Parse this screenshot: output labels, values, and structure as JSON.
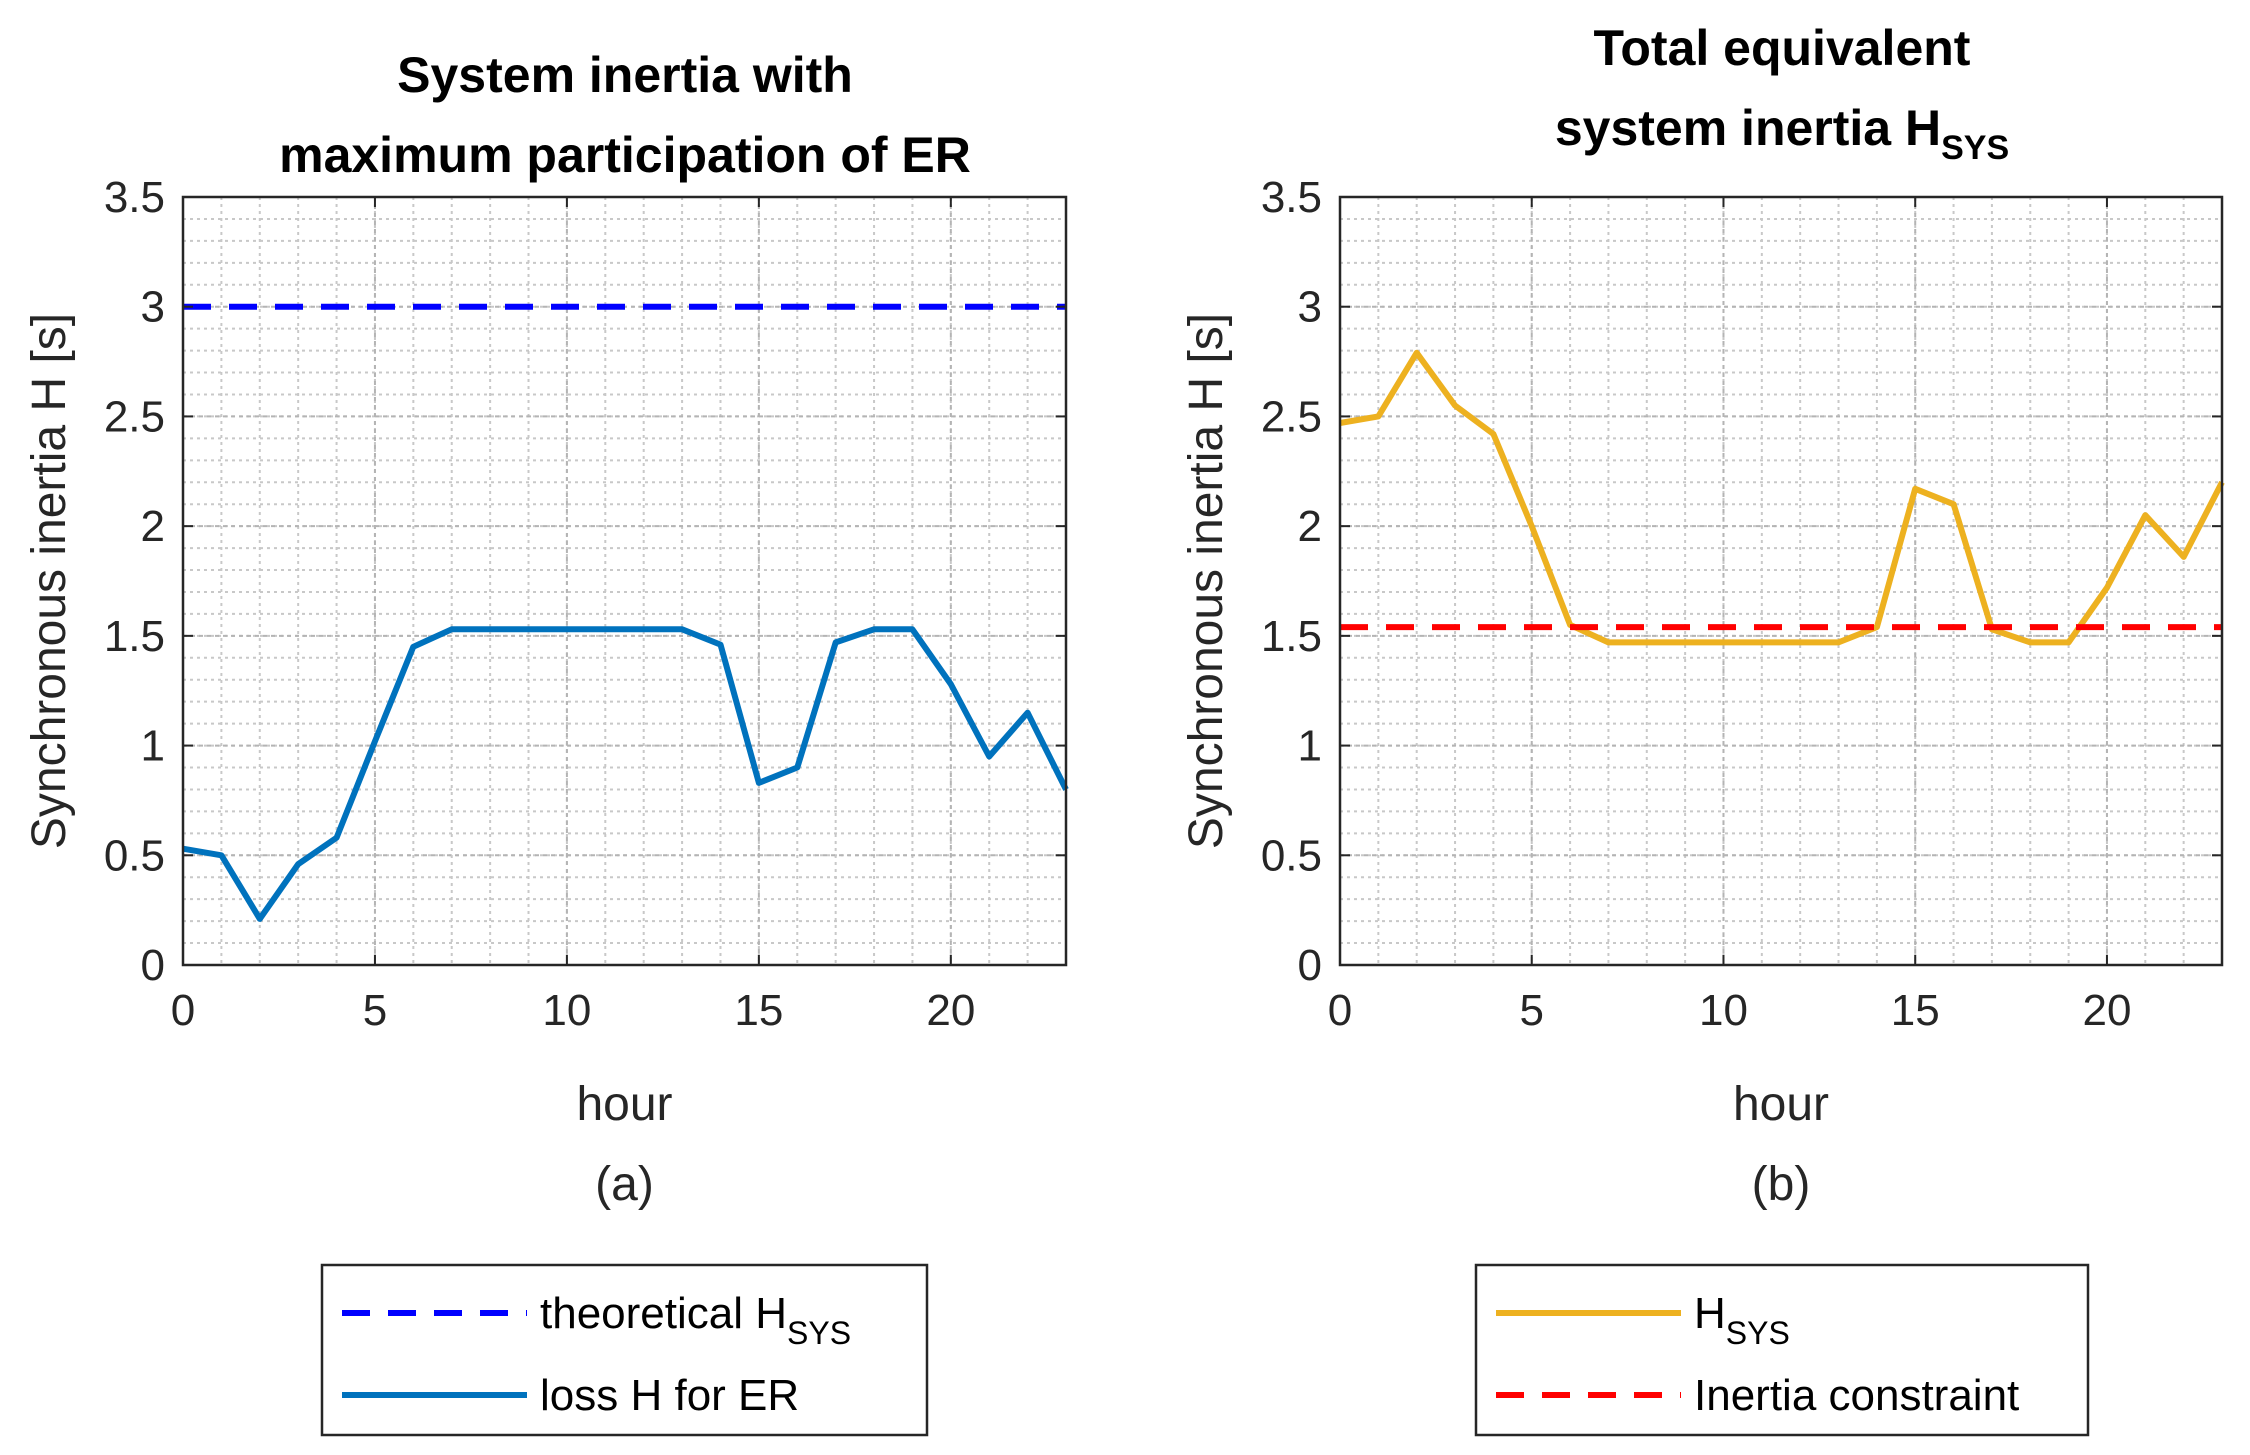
{
  "chart_data": [
    {
      "type": "line",
      "id": "a",
      "title_lines": [
        "System inertia with",
        "maximum participation of ER"
      ],
      "xlabel": "hour",
      "ylabel": "Synchronous inertia H [s]",
      "caption": "(a)",
      "xlim": [
        0,
        23
      ],
      "ylim": [
        0,
        3.5
      ],
      "xticks": [
        0,
        5,
        10,
        15,
        20
      ],
      "yticks": [
        0,
        0.5,
        1,
        1.5,
        2,
        2.5,
        3,
        3.5
      ],
      "grid": true,
      "legend_position": "below",
      "series": [
        {
          "name": "theoretical H",
          "name_sub": "SYS",
          "color": "#0000ff",
          "style": "dashed",
          "x": [
            0,
            23
          ],
          "values": [
            3.0,
            3.0
          ]
        },
        {
          "name": "loss H for ER",
          "name_sub": "",
          "color": "#0072bd",
          "style": "solid",
          "x": [
            0,
            1,
            2,
            3,
            4,
            5,
            6,
            7,
            8,
            9,
            10,
            11,
            12,
            13,
            14,
            15,
            16,
            17,
            18,
            19,
            20,
            21,
            22,
            23
          ],
          "values": [
            0.53,
            0.5,
            0.21,
            0.46,
            0.58,
            1.02,
            1.45,
            1.53,
            1.53,
            1.53,
            1.53,
            1.53,
            1.53,
            1.53,
            1.46,
            0.83,
            0.9,
            1.47,
            1.53,
            1.53,
            1.28,
            0.95,
            1.15,
            0.8
          ]
        }
      ]
    },
    {
      "type": "line",
      "id": "b",
      "title_lines": [
        "Total equivalent",
        "system inertia H"
      ],
      "title_sub": "SYS",
      "xlabel": "hour",
      "ylabel": "Synchronous inertia H [s]",
      "caption": "(b)",
      "xlim": [
        0,
        23
      ],
      "ylim": [
        0,
        3.5
      ],
      "xticks": [
        0,
        5,
        10,
        15,
        20
      ],
      "yticks": [
        0,
        0.5,
        1,
        1.5,
        2,
        2.5,
        3,
        3.5
      ],
      "grid": true,
      "legend_position": "below",
      "series": [
        {
          "name": "H",
          "name_sub": "SYS",
          "color": "#edb120",
          "style": "solid",
          "x": [
            0,
            1,
            2,
            3,
            4,
            5,
            6,
            7,
            8,
            9,
            10,
            11,
            12,
            13,
            14,
            15,
            16,
            17,
            18,
            19,
            20,
            21,
            22,
            23
          ],
          "values": [
            2.47,
            2.5,
            2.79,
            2.55,
            2.42,
            2.0,
            1.55,
            1.47,
            1.47,
            1.47,
            1.47,
            1.47,
            1.47,
            1.47,
            1.54,
            2.17,
            2.1,
            1.53,
            1.47,
            1.47,
            1.72,
            2.05,
            1.86,
            2.2
          ]
        },
        {
          "name": "Inertia constraint",
          "name_sub": "",
          "color": "#ff0000",
          "style": "dashed",
          "x": [
            0,
            23
          ],
          "values": [
            1.54,
            1.54
          ]
        }
      ]
    }
  ]
}
